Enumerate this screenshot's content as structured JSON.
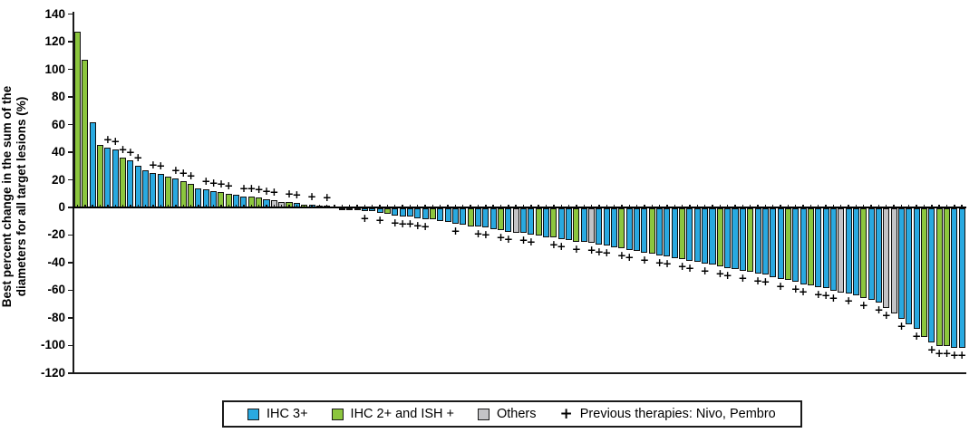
{
  "chart_data": {
    "type": "bar",
    "subtype": "waterfall",
    "title": "",
    "ylabel_line1": "Best percent change in the sum of the",
    "ylabel_line2": "diameters for all target lesions (%)",
    "ylim": [
      -120,
      140
    ],
    "yticks": [
      140,
      120,
      100,
      80,
      60,
      40,
      20,
      0,
      -20,
      -40,
      -60,
      -80,
      -100,
      -120
    ],
    "grid": false,
    "x_axis": "individual patients (unlabeled)",
    "groups": {
      "b": {
        "label": "IHC 3+",
        "color": "#29a9e0"
      },
      "g": {
        "label": "IHC 2+ and ISH +",
        "color": "#8cc63e"
      },
      "y": {
        "label": "Others",
        "color": "#c3c3c6"
      }
    },
    "plus_meaning": "Previous therapies: Nivo, Pembro",
    "bars": [
      [
        127,
        "g",
        0
      ],
      [
        107,
        "g",
        0
      ],
      [
        62,
        "b",
        0
      ],
      [
        45,
        "g",
        0
      ],
      [
        43,
        "b",
        1
      ],
      [
        42,
        "b",
        1
      ],
      [
        36,
        "g",
        1
      ],
      [
        34,
        "b",
        1
      ],
      [
        30,
        "b",
        1
      ],
      [
        27,
        "b",
        0
      ],
      [
        25,
        "b",
        1
      ],
      [
        24,
        "b",
        1
      ],
      [
        22,
        "g",
        0
      ],
      [
        21,
        "b",
        1
      ],
      [
        19,
        "g",
        1
      ],
      [
        17,
        "g",
        1
      ],
      [
        14,
        "b",
        0
      ],
      [
        13,
        "b",
        1
      ],
      [
        12,
        "b",
        1
      ],
      [
        11,
        "g",
        1
      ],
      [
        10,
        "g",
        1
      ],
      [
        9,
        "b",
        0
      ],
      [
        8,
        "b",
        1
      ],
      [
        8,
        "g",
        1
      ],
      [
        7,
        "g",
        1
      ],
      [
        6,
        "b",
        1
      ],
      [
        5,
        "y",
        1
      ],
      [
        4,
        "y",
        0
      ],
      [
        4,
        "g",
        1
      ],
      [
        3,
        "b",
        1
      ],
      [
        2,
        "g",
        0
      ],
      [
        2,
        "b",
        1
      ],
      [
        1,
        "b",
        0
      ],
      [
        1,
        "g",
        1
      ],
      [
        0.5,
        "b",
        0
      ],
      [
        -0.5,
        "b",
        0
      ],
      [
        -1,
        "b",
        0
      ],
      [
        -1,
        "g",
        0
      ],
      [
        -2,
        "b",
        1
      ],
      [
        -2,
        "b",
        0
      ],
      [
        -3,
        "b",
        1
      ],
      [
        -4,
        "g",
        0
      ],
      [
        -5,
        "b",
        1
      ],
      [
        -6,
        "b",
        1
      ],
      [
        -6,
        "b",
        1
      ],
      [
        -7,
        "b",
        1
      ],
      [
        -8,
        "b",
        1
      ],
      [
        -8,
        "g",
        0
      ],
      [
        -9,
        "b",
        0
      ],
      [
        -10,
        "b",
        0
      ],
      [
        -11,
        "b",
        1
      ],
      [
        -12,
        "b",
        0
      ],
      [
        -13,
        "g",
        0
      ],
      [
        -13,
        "b",
        1
      ],
      [
        -14,
        "b",
        1
      ],
      [
        -15,
        "b",
        0
      ],
      [
        -16,
        "g",
        1
      ],
      [
        -17,
        "b",
        1
      ],
      [
        -18,
        "y",
        0
      ],
      [
        -18,
        "b",
        1
      ],
      [
        -19,
        "b",
        1
      ],
      [
        -20,
        "g",
        0
      ],
      [
        -21,
        "b",
        0
      ],
      [
        -21,
        "g",
        1
      ],
      [
        -22,
        "b",
        1
      ],
      [
        -23,
        "b",
        0
      ],
      [
        -24,
        "g",
        1
      ],
      [
        -24,
        "b",
        0
      ],
      [
        -25,
        "y",
        1
      ],
      [
        -26,
        "b",
        1
      ],
      [
        -27,
        "b",
        1
      ],
      [
        -28,
        "b",
        0
      ],
      [
        -29,
        "g",
        1
      ],
      [
        -30,
        "b",
        1
      ],
      [
        -31,
        "b",
        0
      ],
      [
        -32,
        "b",
        1
      ],
      [
        -33,
        "g",
        0
      ],
      [
        -34,
        "b",
        1
      ],
      [
        -35,
        "b",
        1
      ],
      [
        -36,
        "b",
        0
      ],
      [
        -37,
        "g",
        1
      ],
      [
        -38,
        "b",
        1
      ],
      [
        -39,
        "b",
        0
      ],
      [
        -40,
        "b",
        1
      ],
      [
        -41,
        "b",
        0
      ],
      [
        -42,
        "g",
        1
      ],
      [
        -43,
        "b",
        1
      ],
      [
        -44,
        "b",
        0
      ],
      [
        -45,
        "b",
        1
      ],
      [
        -46,
        "g",
        0
      ],
      [
        -47,
        "b",
        1
      ],
      [
        -48,
        "b",
        1
      ],
      [
        -50,
        "b",
        0
      ],
      [
        -51,
        "b",
        1
      ],
      [
        -52,
        "g",
        0
      ],
      [
        -53,
        "b",
        1
      ],
      [
        -55,
        "b",
        1
      ],
      [
        -56,
        "g",
        0
      ],
      [
        -57,
        "b",
        1
      ],
      [
        -58,
        "b",
        1
      ],
      [
        -60,
        "b",
        1
      ],
      [
        -61,
        "y",
        0
      ],
      [
        -62,
        "b",
        1
      ],
      [
        -63,
        "b",
        0
      ],
      [
        -65,
        "g",
        1
      ],
      [
        -66,
        "b",
        0
      ],
      [
        -68,
        "b",
        1
      ],
      [
        -72,
        "y",
        1
      ],
      [
        -76,
        "y",
        0
      ],
      [
        -80,
        "b",
        1
      ],
      [
        -84,
        "b",
        0
      ],
      [
        -87,
        "b",
        1
      ],
      [
        -93,
        "g",
        0
      ],
      [
        -97,
        "b",
        1
      ],
      [
        -100,
        "g",
        1
      ],
      [
        -100,
        "g",
        1
      ],
      [
        -101,
        "b",
        1
      ],
      [
        -101,
        "b",
        1
      ]
    ],
    "legend_position": "bottom"
  },
  "legend": {
    "items": [
      {
        "key": "b",
        "label": "IHC 3+"
      },
      {
        "key": "g",
        "label": "IHC 2+ and ISH +"
      },
      {
        "key": "y",
        "label": "Others"
      }
    ],
    "plus_item": {
      "symbol": "+",
      "label": "Previous therapies: Nivo, Pembro"
    }
  }
}
